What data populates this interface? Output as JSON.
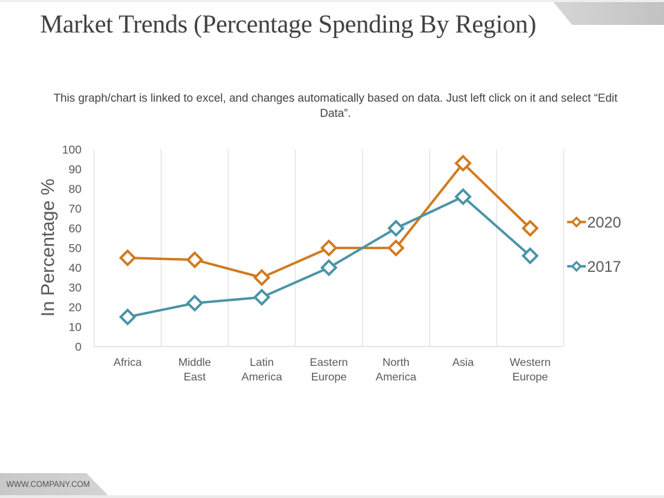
{
  "slide": {
    "title": "Market Trends (Percentage Spending By Region)",
    "subtitle": "This graph/chart is linked to excel, and changes automatically based on data. Just left click on it and select “Edit Data”.",
    "footer": "WWW.COMPANY.COM"
  },
  "chart_data": {
    "type": "line",
    "title": "",
    "xlabel": "",
    "ylabel": "In Percentage %",
    "ylim": [
      0,
      100
    ],
    "yticks": [
      0,
      10,
      20,
      30,
      40,
      50,
      60,
      70,
      80,
      90,
      100
    ],
    "grid": "vertical",
    "legend": "right",
    "categories": [
      [
        "Africa"
      ],
      [
        "Middle",
        "East"
      ],
      [
        "Latin",
        "America"
      ],
      [
        "Eastern",
        "Europe"
      ],
      [
        "North",
        "America"
      ],
      [
        "Asia"
      ],
      [
        "Western",
        "Europe"
      ]
    ],
    "series": [
      {
        "name": "2020",
        "color": "#D07A1E",
        "marker": "diamond",
        "values": [
          45,
          44,
          35,
          50,
          50,
          93,
          60
        ]
      },
      {
        "name": "2017",
        "color": "#4A93A6",
        "marker": "diamond",
        "values": [
          15,
          22,
          25,
          40,
          60,
          76,
          46
        ]
      }
    ]
  }
}
